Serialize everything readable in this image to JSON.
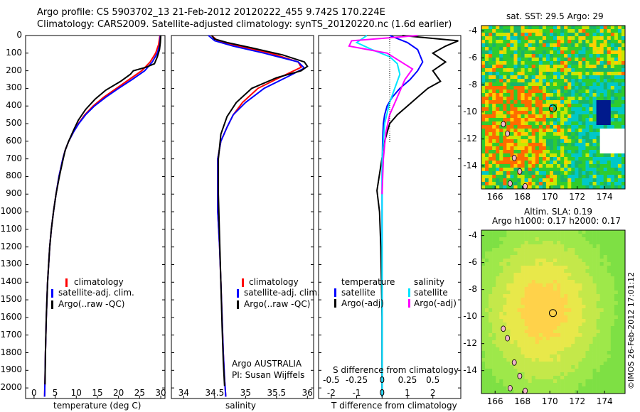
{
  "header": {
    "line1": "Argo profile: CS 5903702_13 21-Feb-2012 20120222_455 9.742S 170.224E",
    "line2": "Climatology: CARS2009. Satellite-adjusted climatology: synTS_20120220.nc (1.6d earlier)"
  },
  "colors": {
    "climatology": "#ff0000",
    "satellite": "#0000ff",
    "argo": "#000000",
    "satellite_salinity": "#00e5ff",
    "argo_salinity_diff": "#ff00ff"
  },
  "chart_data": [
    {
      "id": "temperature",
      "type": "line",
      "xlabel": "temperature (deg C)",
      "ylabel": "",
      "xlim": [
        -2,
        31
      ],
      "ylim": [
        2060,
        0
      ],
      "xticks": [
        "0",
        "5",
        "10",
        "15",
        "20",
        "25",
        "30"
      ],
      "yticks": [
        "0",
        "100",
        "200",
        "300",
        "400",
        "500",
        "600",
        "700",
        "800",
        "900",
        "1000",
        "1100",
        "1200",
        "1300",
        "1400",
        "1500",
        "1600",
        "1700",
        "1800",
        "1900",
        "2000"
      ],
      "legend": [
        "climatology",
        "satellite-adj. clim.",
        "Argo(..raw -QC)"
      ],
      "series": [
        {
          "name": "climatology",
          "color": "red",
          "x": [
            29.8,
            29.5,
            28.8,
            27.5,
            25.5,
            22.5,
            19.5,
            16.5,
            14.0,
            12.0,
            10.5,
            9.3,
            8.2,
            7.4,
            6.8,
            5.9,
            5.2,
            4.6,
            4.1,
            3.7,
            3.2,
            2.9,
            2.7,
            2.6,
            2.5
          ],
          "y": [
            0,
            50,
            100,
            150,
            200,
            250,
            300,
            350,
            400,
            450,
            500,
            550,
            600,
            650,
            700,
            800,
            900,
            1000,
            1100,
            1200,
            1400,
            1600,
            1800,
            1950,
            2050
          ]
        },
        {
          "name": "satellite-adj. clim.",
          "color": "blue",
          "x": [
            29.9,
            29.8,
            29.2,
            28.0,
            26.2,
            23.2,
            20.0,
            17.0,
            14.3,
            12.2,
            10.6,
            9.3,
            8.2,
            7.4,
            6.8,
            5.9,
            5.2,
            4.6,
            4.1,
            3.7,
            3.2,
            2.9,
            2.7,
            2.6,
            2.5
          ],
          "y": [
            0,
            50,
            100,
            150,
            200,
            250,
            300,
            350,
            400,
            450,
            500,
            550,
            600,
            650,
            700,
            800,
            900,
            1000,
            1100,
            1200,
            1400,
            1600,
            1800,
            1950,
            2050
          ]
        },
        {
          "name": "Argo(..raw -QC)",
          "color": "black",
          "x": [
            30.0,
            29.9,
            29.7,
            29.2,
            28.5,
            26.5,
            23.5,
            22.8,
            20.5,
            17.0,
            14.5,
            12.2,
            10.5,
            9.3,
            8.2,
            7.4,
            6.9,
            6.0,
            5.2,
            4.6,
            4.1,
            3.7,
            3.2,
            2.9,
            2.7,
            2.6
          ],
          "y": [
            0,
            40,
            80,
            120,
            160,
            180,
            200,
            220,
            260,
            310,
            360,
            420,
            480,
            540,
            600,
            650,
            700,
            800,
            900,
            1000,
            1100,
            1200,
            1400,
            1600,
            1800,
            1980
          ]
        }
      ]
    },
    {
      "id": "salinity",
      "type": "line",
      "xlabel": "salinity",
      "xlim": [
        33.8,
        36.1
      ],
      "ylim": [
        2060,
        0
      ],
      "xticks": [
        "34",
        "34.5",
        "35",
        "35.5",
        "36"
      ],
      "legend": [
        "climatology",
        "satellite-adj. clim.",
        "Argo(..raw -QC)"
      ],
      "annotation": [
        "Argo AUSTRALIA",
        "PI: Susan Wijffels"
      ],
      "series": [
        {
          "name": "climatology",
          "color": "red",
          "x": [
            34.45,
            34.55,
            34.9,
            35.4,
            35.85,
            35.9,
            35.6,
            35.2,
            34.95,
            34.8,
            34.7,
            34.6,
            34.55,
            34.55,
            34.55,
            34.58,
            34.6,
            34.62,
            34.64,
            34.66,
            34.68
          ],
          "y": [
            0,
            30,
            60,
            100,
            150,
            180,
            230,
            300,
            380,
            450,
            520,
            600,
            700,
            850,
            1000,
            1200,
            1400,
            1600,
            1800,
            1950,
            2050
          ]
        },
        {
          "name": "satellite-adj. clim.",
          "color": "blue",
          "x": [
            34.4,
            34.5,
            34.8,
            35.3,
            35.85,
            35.95,
            35.7,
            35.3,
            35.0,
            34.8,
            34.7,
            34.6,
            34.55,
            34.55,
            34.55,
            34.58,
            34.6,
            34.62,
            34.64,
            34.66,
            34.68
          ],
          "y": [
            0,
            30,
            60,
            100,
            150,
            185,
            230,
            300,
            380,
            450,
            520,
            600,
            700,
            850,
            1000,
            1200,
            1400,
            1600,
            1800,
            1950,
            2050
          ]
        },
        {
          "name": "Argo(..raw -QC)",
          "color": "black",
          "x": [
            34.45,
            34.5,
            34.7,
            35.1,
            35.6,
            35.95,
            36.0,
            35.9,
            35.5,
            35.1,
            34.85,
            34.7,
            34.6,
            34.56,
            34.56,
            34.58,
            34.6,
            34.62,
            34.64,
            34.66
          ],
          "y": [
            0,
            20,
            40,
            70,
            110,
            150,
            175,
            200,
            240,
            300,
            380,
            460,
            560,
            700,
            900,
            1150,
            1400,
            1650,
            1850,
            1990
          ]
        }
      ]
    },
    {
      "id": "differences",
      "type": "line",
      "xlabel": "T difference from climatology",
      "xlabel_top": "S difference from climatology",
      "xlim": [
        -2.5,
        3.1
      ],
      "ylim": [
        2060,
        0
      ],
      "xticks": [
        "-2",
        "-1",
        "0",
        "1",
        "2"
      ],
      "xticks_s": [
        "-0.5",
        "-0.25",
        "0",
        "0.25",
        "0.5"
      ],
      "legend_temperature": [
        "temperature",
        "satellite",
        "Argo(-adj)"
      ],
      "legend_salinity": [
        "salinity",
        "satellite",
        "Argo(-adj)"
      ],
      "series": [
        {
          "name": "temperature satellite",
          "color": "blue",
          "x": [
            0.3,
            1.0,
            1.4,
            1.6,
            1.4,
            1.1,
            0.7,
            0.4,
            0.2,
            0.1,
            0.05,
            0.02,
            0.0,
            0.0,
            0.0,
            0.0,
            0.0
          ],
          "y": [
            0,
            40,
            80,
            150,
            200,
            250,
            300,
            350,
            400,
            450,
            500,
            600,
            800,
            1000,
            1400,
            1800,
            2050
          ]
        },
        {
          "name": "temperature Argo(-adj)",
          "color": "black",
          "x": [
            0.8,
            3.0,
            2.5,
            2.0,
            2.5,
            2.0,
            2.3,
            1.8,
            1.4,
            1.0,
            0.6,
            0.3,
            0.1,
            -0.2,
            -0.1,
            -0.05,
            0.0,
            0.0
          ],
          "y": [
            0,
            30,
            60,
            100,
            150,
            200,
            260,
            300,
            350,
            400,
            450,
            500,
            600,
            880,
            1000,
            1200,
            1600,
            2050
          ]
        },
        {
          "name": "salinity satellite",
          "color": "cyan",
          "x": [
            -0.6,
            -1.0,
            -0.4,
            0.3,
            0.6,
            0.7,
            0.5,
            0.3,
            0.1,
            0.0,
            0.0,
            0.0,
            0.0
          ],
          "y": [
            0,
            40,
            80,
            120,
            160,
            220,
            300,
            380,
            500,
            700,
            1000,
            1500,
            2050
          ]
        },
        {
          "name": "salinity Argo(-adj)",
          "color": "magenta",
          "x": [
            1.4,
            -1.2,
            -1.3,
            0.2,
            1.2,
            0.9,
            0.6,
            0.3,
            0.15,
            0.05,
            0.0
          ],
          "y": [
            0,
            30,
            60,
            100,
            190,
            250,
            350,
            450,
            550,
            700,
            900
          ]
        }
      ]
    },
    {
      "id": "sst-map",
      "type": "heatmap",
      "title": "sat. SST: 29.5 Argo: 29",
      "xlim": [
        165,
        175.5
      ],
      "ylim": [
        -15.7,
        -3.6
      ],
      "xticks": [
        "166",
        "168",
        "170",
        "172",
        "174"
      ],
      "yticks": [
        "-4",
        "-6",
        "-8",
        "-10",
        "-12",
        "-14"
      ],
      "float_position": {
        "lon": 170.224,
        "lat": -9.742
      }
    },
    {
      "id": "sla-map",
      "type": "heatmap",
      "title_line1": "Altim. SLA: 0.19",
      "title_line2": "Argo h1000: 0.17 h2000: 0.17",
      "xlim": [
        165,
        175.5
      ],
      "ylim": [
        -15.7,
        -3.6
      ],
      "xticks": [
        "166",
        "168",
        "170",
        "172",
        "174"
      ],
      "yticks": [
        "-4",
        "-6",
        "-8",
        "-10",
        "-12",
        "-14"
      ],
      "float_position": {
        "lon": 170.224,
        "lat": -9.742
      }
    }
  ],
  "footer": {
    "timestamp": "©IMOS 26-Feb-2012 17:01:12"
  }
}
